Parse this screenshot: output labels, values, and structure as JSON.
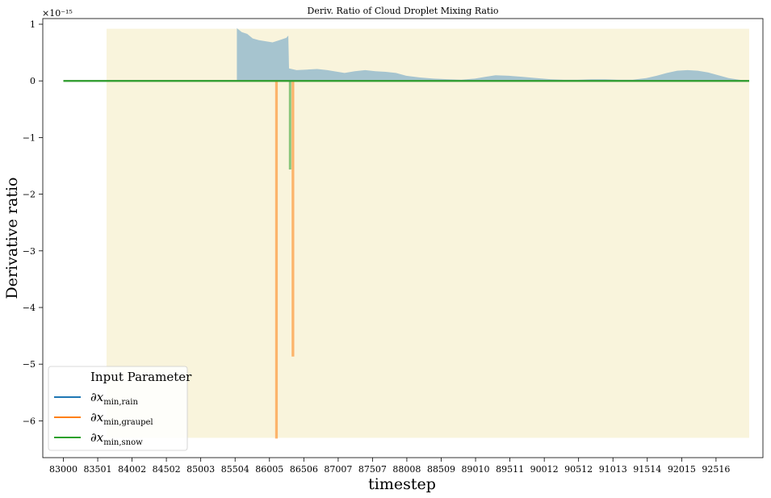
{
  "chart_data": {
    "type": "line",
    "title": "Deriv. Ratio of Cloud Droplet Mixing Ratio",
    "xlabel": "timestep",
    "ylabel": "Derivative ratio",
    "y_offset_label": "×10⁻¹⁵",
    "y_multiplier": 1e-15,
    "xlim": [
      82700,
      93200
    ],
    "ylim": [
      -6.65,
      1.1
    ],
    "x_ticks": [
      83000,
      83501,
      84002,
      84502,
      85003,
      85504,
      86005,
      86506,
      87007,
      87507,
      88008,
      88509,
      89010,
      89511,
      90012,
      90512,
      91013,
      91514,
      92015,
      92516
    ],
    "y_ticks": [
      1,
      0,
      -1,
      -2,
      -3,
      -4,
      -5,
      -6
    ],
    "y_tick_labels": [
      "1",
      "0",
      "−1",
      "−2",
      "−3",
      "−4",
      "−5",
      "−6"
    ],
    "grid": false,
    "background_region": {
      "x_start": 83630,
      "x_end": 93000,
      "y_min": -6.3,
      "y_max": 0.92,
      "color": "#f9f4dc"
    },
    "filled_area": {
      "color": "#a6c4cf",
      "points": [
        [
          85530,
          0.0
        ],
        [
          85530,
          0.93
        ],
        [
          85600,
          0.86
        ],
        [
          85680,
          0.83
        ],
        [
          85760,
          0.75
        ],
        [
          85850,
          0.72
        ],
        [
          85950,
          0.7
        ],
        [
          86050,
          0.68
        ],
        [
          86150,
          0.72
        ],
        [
          86250,
          0.76
        ],
        [
          86280,
          0.8
        ],
        [
          86290,
          0.22
        ],
        [
          86400,
          0.19
        ],
        [
          86550,
          0.2
        ],
        [
          86700,
          0.21
        ],
        [
          86850,
          0.19
        ],
        [
          87000,
          0.16
        ],
        [
          87100,
          0.14
        ],
        [
          87250,
          0.17
        ],
        [
          87400,
          0.19
        ],
        [
          87550,
          0.17
        ],
        [
          87700,
          0.16
        ],
        [
          87850,
          0.14
        ],
        [
          88000,
          0.09
        ],
        [
          88200,
          0.06
        ],
        [
          88400,
          0.04
        ],
        [
          88600,
          0.03
        ],
        [
          88800,
          0.02
        ],
        [
          89000,
          0.04
        ],
        [
          89150,
          0.07
        ],
        [
          89300,
          0.1
        ],
        [
          89500,
          0.09
        ],
        [
          89700,
          0.07
        ],
        [
          89900,
          0.05
        ],
        [
          90100,
          0.03
        ],
        [
          90300,
          0.02
        ],
        [
          90500,
          0.02
        ],
        [
          90700,
          0.03
        ],
        [
          90900,
          0.03
        ],
        [
          91100,
          0.02
        ],
        [
          91300,
          0.02
        ],
        [
          91500,
          0.05
        ],
        [
          91650,
          0.09
        ],
        [
          91800,
          0.14
        ],
        [
          91950,
          0.18
        ],
        [
          92100,
          0.19
        ],
        [
          92250,
          0.18
        ],
        [
          92400,
          0.15
        ],
        [
          92550,
          0.1
        ],
        [
          92700,
          0.05
        ],
        [
          92850,
          0.02
        ],
        [
          93000,
          0.0
        ]
      ]
    },
    "series": [
      {
        "name": "∂x",
        "sub": "min,rain",
        "color": "#1f77b4",
        "x": [
          83000,
          93000
        ],
        "y": [
          0,
          0
        ]
      },
      {
        "name": "∂x",
        "sub": "min,graupel",
        "color": "#ff7f0e",
        "alpha": 0.55,
        "x": [
          83000,
          86100,
          86100,
          86115,
          86115,
          86340,
          86340,
          86355,
          86355,
          93000
        ],
        "y": [
          0,
          0,
          -6.3,
          -6.3,
          0,
          0,
          -4.85,
          -4.85,
          0,
          0
        ]
      },
      {
        "name": "∂x",
        "sub": "min,snow",
        "color": "#2ca02c",
        "alpha": 0.55,
        "x": [
          83000,
          86300,
          86300,
          86312,
          86312,
          93000
        ],
        "y": [
          0,
          0,
          -1.55,
          -1.55,
          0,
          0
        ]
      }
    ],
    "legend": {
      "title": "Input Parameter",
      "placement": "lower-left"
    }
  }
}
